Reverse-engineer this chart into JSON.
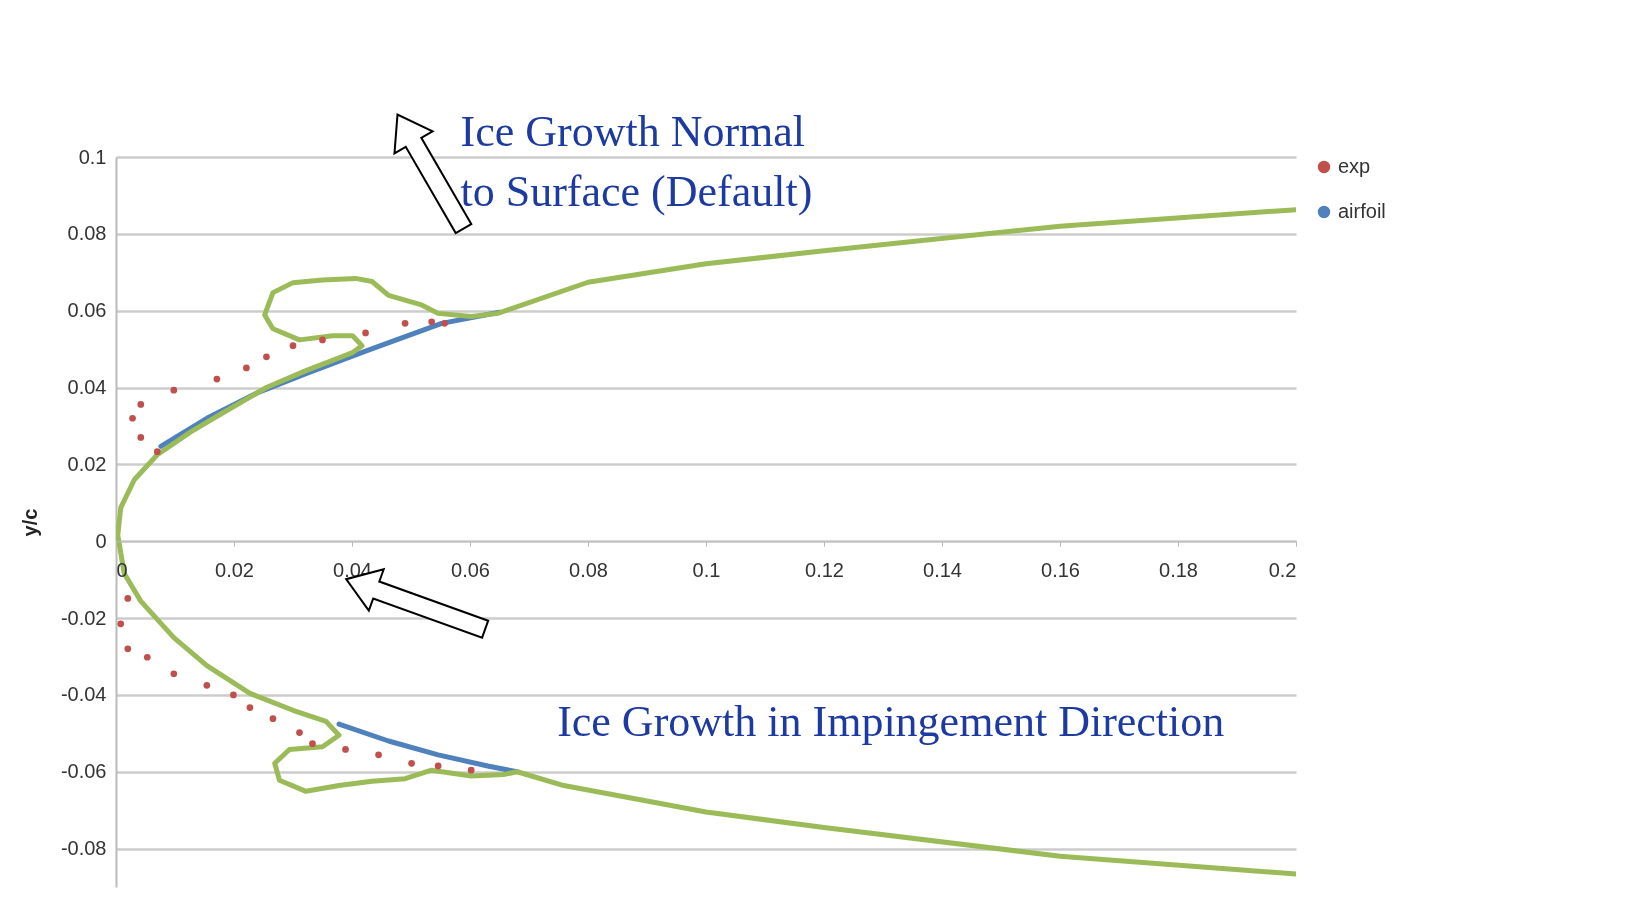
{
  "chart_data": {
    "type": "line",
    "ylabel": "y/c",
    "xlim": [
      0,
      0.2
    ],
    "xticks": [
      0,
      0.02,
      0.04,
      0.06,
      0.08,
      0.1,
      0.12,
      0.14,
      0.16,
      0.18,
      0.2
    ],
    "ylim": [
      -0.09,
      0.1
    ],
    "yticks": [
      -0.08,
      -0.06,
      -0.04,
      -0.02,
      0,
      0.02,
      0.04,
      0.06,
      0.08,
      0.1
    ],
    "grid": "y",
    "legend": "right",
    "annotations": [
      "Ice Growth Normal\nto Surface (Default)",
      "Ice Growth in Impingement Direction"
    ],
    "series": [
      {
        "name": "exp",
        "type": "scatter",
        "marker": "circle",
        "color": "#c0504d",
        "x": [
          0.0557,
          0.0535,
          0.049,
          0.0423,
          0.035,
          0.03,
          0.0255,
          0.0221,
          0.0171,
          0.0098,
          0.0042,
          0.0028,
          0.0042,
          0.007,
          0.002,
          0.0008,
          0.002,
          0.0053,
          0.0098,
          0.0154,
          0.0199,
          0.0227,
          0.0266,
          0.0311,
          0.0333,
          0.0389,
          0.0445,
          0.0501,
          0.0546,
          0.0602
        ],
        "values": [
          0.0567,
          0.0571,
          0.0567,
          0.0542,
          0.0524,
          0.0509,
          0.048,
          0.0451,
          0.0422,
          0.0393,
          0.0356,
          0.032,
          0.027,
          0.0233,
          -0.0149,
          -0.0215,
          -0.028,
          -0.0302,
          -0.0345,
          -0.0375,
          -0.04,
          -0.0433,
          -0.0462,
          -0.0498,
          -0.0527,
          -0.0542,
          -0.0556,
          -0.0578,
          -0.0585,
          -0.0596
        ]
      },
      {
        "name": "airfoil",
        "color": "#4f81bd",
        "x": [
          0.065,
          0.0552,
          0.0423,
          0.0322,
          0.0238,
          0.0154,
          0.0076,
          null,
          null,
          0.0378,
          0.0462,
          0.0546,
          0.063,
          0.068
        ],
        "values": [
          0.0596,
          0.0567,
          0.0495,
          0.0436,
          0.0385,
          0.032,
          0.0247,
          null,
          null,
          -0.0476,
          -0.052,
          -0.0556,
          -0.0585,
          -0.06
        ]
      },
      {
        "color": "#9bbb59",
        "x": [
          0.2,
          0.16,
          0.12,
          0.1,
          0.08,
          0.0647,
          0.0602,
          0.0546,
          0.0518,
          0.0462,
          0.0434,
          0.0406,
          0.035,
          0.03,
          0.0266,
          0.0252,
          0.0266,
          0.0311,
          0.0367,
          0.0401,
          0.0417,
          0.0401,
          0.0322,
          0.0255,
          0.0182,
          0.0126,
          0.007,
          0.0031,
          0.0008,
          0.0003,
          0.0014,
          0.0042,
          0.0098,
          0.0154,
          0.0227,
          0.03,
          0.0356,
          0.0378,
          0.035,
          0.0294,
          0.0269,
          0.0277,
          0.0322,
          0.0378,
          0.0434,
          0.049,
          0.0535,
          0.0602,
          0.0658,
          0.068,
          0.0759,
          0.1,
          0.12,
          0.16,
          0.2
        ],
        "values": [
          0.0863,
          0.082,
          0.0756,
          0.0722,
          0.0674,
          0.0593,
          0.0585,
          0.0593,
          0.0615,
          0.064,
          0.0676,
          0.0684,
          0.068,
          0.0673,
          0.0647,
          0.0589,
          0.0553,
          0.0524,
          0.0535,
          0.0535,
          0.0509,
          0.0491,
          0.0444,
          0.04,
          0.0335,
          0.0284,
          0.0225,
          0.016,
          0.0087,
          0.0015,
          -0.0084,
          -0.0156,
          -0.0251,
          -0.0324,
          -0.0396,
          -0.044,
          -0.0469,
          -0.0505,
          -0.0535,
          -0.0542,
          -0.0578,
          -0.0622,
          -0.0651,
          -0.0636,
          -0.0625,
          -0.0618,
          -0.0596,
          -0.0611,
          -0.0607,
          -0.06,
          -0.0636,
          -0.0705,
          -0.0745,
          -0.082,
          -0.0866
        ]
      }
    ]
  }
}
